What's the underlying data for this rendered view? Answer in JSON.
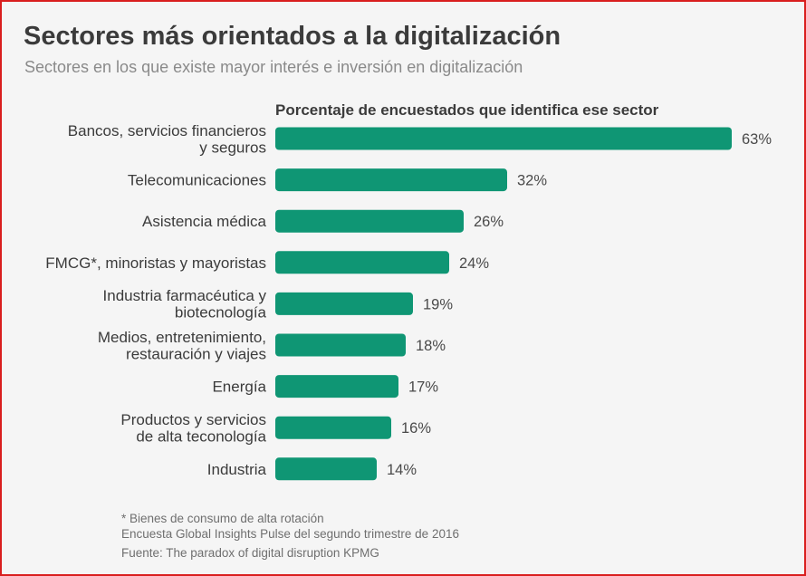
{
  "header": {
    "title": "Sectores más orientados a la digitalización",
    "subtitle": "Sectores en los que existe mayor interés e inversión en digitalización"
  },
  "chart_data": {
    "type": "bar",
    "orientation": "horizontal",
    "title": "Porcentaje de encuestados que identifica ese sector",
    "categories": [
      [
        "Bancos, servicios financieros",
        "y seguros"
      ],
      [
        "Telecomunicaciones"
      ],
      [
        "Asistencia médica"
      ],
      [
        "FMCG*, minoristas y mayoristas"
      ],
      [
        "Industria farmacéutica y",
        "biotecnología"
      ],
      [
        "Medios, entretenimiento,",
        "restauración y viajes"
      ],
      [
        "Energía"
      ],
      [
        "Productos y servicios",
        "de alta teconología"
      ],
      [
        "Industria"
      ]
    ],
    "values": [
      63,
      32,
      26,
      24,
      19,
      18,
      17,
      16,
      14
    ],
    "value_labels": [
      "63%",
      "32%",
      "26%",
      "24%",
      "19%",
      "18%",
      "17%",
      "16%",
      "14%"
    ],
    "unit": "%",
    "bar_color": "#0f9674",
    "grid": false,
    "legend": "none"
  },
  "footnotes": {
    "note": "* Bienes de consumo de alta rotación",
    "survey": "Encuesta Global Insights Pulse del segundo trimestre de 2016",
    "source": "Fuente: The paradox of digital disruption KPMG"
  }
}
